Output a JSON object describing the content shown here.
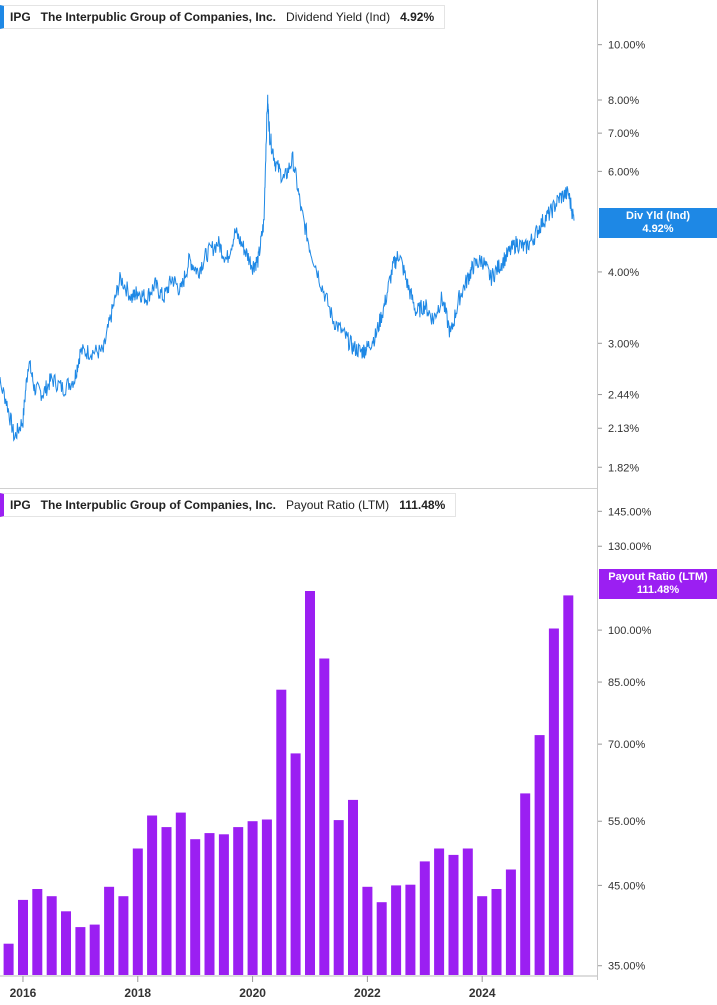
{
  "top_legend": {
    "ticker": "IPG",
    "company": "The Interpublic Group of Companies, Inc.",
    "metric": "Dividend Yield (Ind)",
    "value": "4.92%"
  },
  "bottom_legend": {
    "ticker": "IPG",
    "company": "The Interpublic Group of Companies, Inc.",
    "metric": "Payout Ratio (LTM)",
    "value": "111.48%"
  },
  "yield_tag": {
    "label": "Div Yld (Ind)",
    "value": "4.92%"
  },
  "payout_tag": {
    "label": "Payout Ratio (LTM)",
    "value": "111.48%"
  },
  "colors": {
    "yield": "#1e88e5",
    "payout": "#9b1ff2"
  },
  "chart_data": [
    {
      "type": "line",
      "scale": "log",
      "series": [
        {
          "name": "Dividend Yield (Ind)"
        }
      ],
      "yticks": [
        "10.00%",
        "8.00%",
        "7.00%",
        "6.00%",
        "4.00%",
        "3.00%",
        "2.44%",
        "2.13%",
        "1.82%"
      ],
      "ytick_values": [
        10,
        8,
        7,
        6,
        4,
        3,
        2.44,
        2.13,
        1.82
      ],
      "ylim": [
        1.8,
        11.5
      ],
      "x": [
        2015.5,
        2015.7,
        2015.85,
        2016.0,
        2016.1,
        2016.2,
        2016.35,
        2016.5,
        2016.7,
        2016.9,
        2017.0,
        2017.2,
        2017.4,
        2017.55,
        2017.7,
        2017.9,
        2018.0,
        2018.15,
        2018.3,
        2018.45,
        2018.6,
        2018.75,
        2018.9,
        2019.05,
        2019.2,
        2019.4,
        2019.55,
        2019.7,
        2019.85,
        2020.0,
        2020.1,
        2020.2,
        2020.26,
        2020.3,
        2020.4,
        2020.55,
        2020.7,
        2020.85,
        2021.0,
        2021.2,
        2021.4,
        2021.6,
        2021.75,
        2021.9,
        2022.0,
        2022.15,
        2022.3,
        2022.45,
        2022.55,
        2022.7,
        2022.85,
        2023.0,
        2023.15,
        2023.3,
        2023.45,
        2023.6,
        2023.75,
        2023.85,
        2024.0,
        2024.15,
        2024.3,
        2024.45,
        2024.6,
        2024.75,
        2024.9,
        2025.05,
        2025.2,
        2025.35,
        2025.5,
        2025.6
      ],
      "values": [
        2.7,
        2.4,
        2.05,
        2.2,
        2.8,
        2.5,
        2.45,
        2.6,
        2.5,
        2.6,
        2.9,
        2.9,
        2.9,
        3.4,
        3.9,
        3.6,
        3.7,
        3.6,
        3.8,
        3.6,
        3.9,
        3.7,
        4.2,
        4.0,
        4.3,
        4.5,
        4.2,
        4.7,
        4.4,
        4.1,
        4.2,
        4.9,
        8.0,
        6.9,
        6.2,
        5.8,
        6.3,
        5.1,
        4.4,
        3.8,
        3.3,
        3.1,
        2.95,
        2.9,
        2.95,
        3.1,
        3.5,
        4.1,
        4.3,
        3.8,
        3.4,
        3.5,
        3.3,
        3.6,
        3.1,
        3.6,
        3.9,
        4.1,
        4.2,
        3.9,
        4.1,
        4.3,
        4.5,
        4.4,
        4.6,
        4.9,
        5.1,
        5.4,
        5.5,
        4.92
      ]
    },
    {
      "type": "bar",
      "scale": "log",
      "series": [
        {
          "name": "Payout Ratio (LTM)"
        }
      ],
      "yticks": [
        "145.00%",
        "130.00%",
        "100.00%",
        "85.00%",
        "70.00%",
        "55.00%",
        "45.00%",
        "35.00%"
      ],
      "ytick_values": [
        145,
        130,
        100,
        85,
        70,
        55,
        45,
        35
      ],
      "ylim": [
        34,
        155
      ],
      "x": [
        2015.75,
        2016.0,
        2016.25,
        2016.5,
        2016.75,
        2017.0,
        2017.25,
        2017.5,
        2017.75,
        2018.0,
        2018.25,
        2018.5,
        2018.75,
        2019.0,
        2019.25,
        2019.5,
        2019.75,
        2020.0,
        2020.25,
        2020.5,
        2020.75,
        2021.0,
        2021.25,
        2021.5,
        2021.75,
        2022.0,
        2022.25,
        2022.5,
        2022.75,
        2023.0,
        2023.25,
        2023.5,
        2023.75,
        2024.0,
        2024.25,
        2024.5,
        2024.75,
        2025.0,
        2025.25,
        2025.5
      ],
      "values": [
        37.5,
        43,
        44.5,
        43.5,
        41.5,
        39.5,
        39.8,
        44.8,
        43.5,
        50.5,
        56,
        54,
        56.5,
        52,
        53,
        52.8,
        54,
        55,
        55.3,
        83,
        68,
        113,
        91.5,
        55.2,
        58.8,
        44.8,
        42.7,
        45,
        45.1,
        48.5,
        50.5,
        49.5,
        50.5,
        43.5,
        44.5,
        47.3,
        60,
        72,
        100.5,
        111.48
      ]
    }
  ],
  "xticks": [
    "2016",
    "2018",
    "2020",
    "2022",
    "2024"
  ],
  "xtick_values": [
    2016,
    2018,
    2020,
    2022,
    2024
  ]
}
